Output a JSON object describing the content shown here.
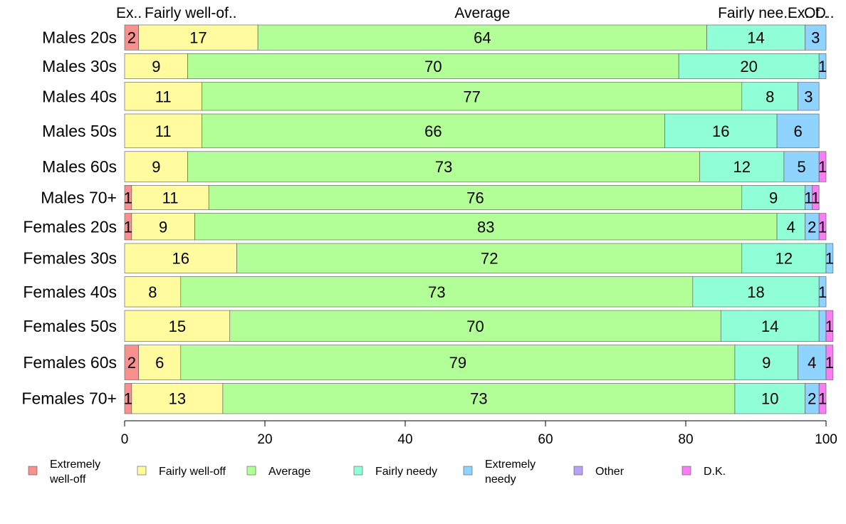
{
  "chart_data": {
    "type": "bar",
    "orientation": "horizontal",
    "stacked": true,
    "title": "",
    "xlabel": "",
    "ylabel": "",
    "xlim": [
      0,
      100
    ],
    "x_ticks": [
      "0",
      "20",
      "40",
      "60",
      "80",
      "100"
    ],
    "grid": false,
    "legend_position": "bottom",
    "categories": [
      "Males 20s",
      "Males 30s",
      "Males 40s",
      "Males 50s",
      "Males 60s",
      "Males 70+",
      "Females 20s",
      "Females 30s",
      "Females 40s",
      "Females 50s",
      "Females 60s",
      "Females 70+"
    ],
    "relative_bar_widths": [
      34,
      34,
      38,
      46,
      41,
      33,
      36,
      40,
      41,
      42,
      47,
      41
    ],
    "top_segment_labels": [
      "Ex..",
      "Fairly well-of..",
      "Average",
      "Fairly nee..",
      "Ex..",
      "Ot..",
      "D.."
    ],
    "series": [
      {
        "name": "Extremely well-off",
        "legend_lines": [
          "Extremely",
          "well-off"
        ],
        "color": "#F8908E",
        "values": [
          2,
          0,
          0,
          0,
          0,
          1,
          1,
          0,
          0,
          0,
          2,
          1
        ],
        "labels": [
          "2",
          "",
          "",
          "",
          "",
          "1",
          "1",
          "",
          "",
          "",
          "2",
          "1"
        ]
      },
      {
        "name": "Fairly well-off",
        "legend_lines": [
          "Fairly well-off"
        ],
        "color": "#FFFB9E",
        "values": [
          17,
          9,
          11,
          11,
          9,
          11,
          9,
          16,
          8,
          15,
          6,
          13
        ],
        "labels": [
          "17",
          "9",
          "11",
          "11",
          "9",
          "11",
          "9",
          "16",
          "8",
          "15",
          "6",
          "13"
        ]
      },
      {
        "name": "Average",
        "legend_lines": [
          "Average"
        ],
        "color": "#B3FF97",
        "values": [
          64,
          70,
          77,
          66,
          73,
          76,
          83,
          72,
          73,
          70,
          79,
          73
        ],
        "labels": [
          "64",
          "70",
          "77",
          "66",
          "73",
          "76",
          "83",
          "72",
          "73",
          "70",
          "79",
          "73"
        ]
      },
      {
        "name": "Fairly needy",
        "legend_lines": [
          "Fairly needy"
        ],
        "color": "#90FFD8",
        "values": [
          14,
          20,
          8,
          16,
          12,
          9,
          4,
          12,
          18,
          14,
          9,
          10
        ],
        "labels": [
          "14",
          "20",
          "8",
          "16",
          "12",
          "9",
          "4",
          "12",
          "18",
          "14",
          "9",
          "10"
        ]
      },
      {
        "name": "Extremely needy",
        "legend_lines": [
          "Extremely",
          "needy"
        ],
        "color": "#8FD3FF",
        "values": [
          3,
          1,
          3,
          6,
          5,
          1,
          2,
          1,
          1,
          1,
          4,
          2
        ],
        "labels": [
          "3",
          "1",
          "3",
          "6",
          "5",
          "1",
          "2",
          "1",
          "1",
          "",
          "4",
          "2"
        ]
      },
      {
        "name": "Other",
        "legend_lines": [
          "Other"
        ],
        "color": "#B9A1F7",
        "values": [
          0,
          0,
          0,
          0,
          0,
          0,
          0,
          0,
          0,
          0,
          0,
          0
        ],
        "labels": [
          "",
          "",
          "",
          "",
          "",
          "",
          "",
          "",
          "",
          "",
          "",
          ""
        ]
      },
      {
        "name": "D.K.",
        "legend_lines": [
          "D.K."
        ],
        "color": "#F97EF4",
        "values": [
          0,
          0,
          0,
          0,
          1,
          1,
          1,
          0,
          0,
          1,
          1,
          1
        ],
        "labels": [
          "",
          "",
          "",
          "",
          "1",
          "1",
          "1",
          "",
          "",
          "1",
          "1",
          "1"
        ]
      }
    ]
  }
}
